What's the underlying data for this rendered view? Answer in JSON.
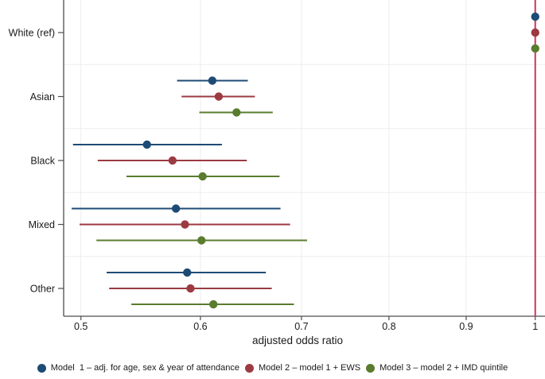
{
  "chart_data": {
    "type": "scatter",
    "subtype": "forest-plot-dot-ci",
    "title": "",
    "xlabel": "adjusted odds ratio",
    "ylabel": "",
    "x_scale": "log",
    "xlim": [
      0.487,
      1.015
    ],
    "x_ticks": [
      0.5,
      0.6,
      0.7,
      0.8,
      0.9,
      1
    ],
    "x_tick_labels": [
      "0.5",
      "0.6",
      "0.7",
      "0.8",
      "0.9",
      "1"
    ],
    "reference_line_x": 1,
    "grid": "light vertical gridlines at x ticks; light horizontal separators between categories",
    "legend_position": "bottom",
    "categories": [
      "White (ref)",
      "Asian",
      "Black",
      "Mixed",
      "Other"
    ],
    "series": [
      {
        "name": "Model  1 – adj. for age, sex & year of attendance",
        "color": "#1e4b75",
        "points": [
          {
            "or": 1.0,
            "lo": 1.0,
            "hi": 1.0
          },
          {
            "or": 0.611,
            "lo": 0.579,
            "hi": 0.645
          },
          {
            "or": 0.553,
            "lo": 0.494,
            "hi": 0.62
          },
          {
            "or": 0.578,
            "lo": 0.493,
            "hi": 0.678
          },
          {
            "or": 0.588,
            "lo": 0.52,
            "hi": 0.663
          }
        ]
      },
      {
        "name": "Model 2 – model 1 + EWS",
        "color": "#9c3a42",
        "points": [
          {
            "or": 1.0,
            "lo": 1.0,
            "hi": 1.0
          },
          {
            "or": 0.617,
            "lo": 0.583,
            "hi": 0.652
          },
          {
            "or": 0.575,
            "lo": 0.513,
            "hi": 0.644
          },
          {
            "or": 0.586,
            "lo": 0.499,
            "hi": 0.688
          },
          {
            "or": 0.591,
            "lo": 0.522,
            "hi": 0.669
          }
        ]
      },
      {
        "name": "Model 3 – model 2 + IMD quintile",
        "color": "#5a7c2e",
        "points": [
          {
            "or": 1.0,
            "lo": 1.0,
            "hi": 1.0
          },
          {
            "or": 0.634,
            "lo": 0.599,
            "hi": 0.67
          },
          {
            "or": 0.602,
            "lo": 0.536,
            "hi": 0.677
          },
          {
            "or": 0.601,
            "lo": 0.512,
            "hi": 0.706
          },
          {
            "or": 0.612,
            "lo": 0.54,
            "hi": 0.692
          }
        ]
      }
    ],
    "colors": {
      "reference_line": "#cf3459",
      "gridline": "#ededed",
      "axis": "#4d4d4d",
      "text": "#1a1a1a"
    }
  }
}
